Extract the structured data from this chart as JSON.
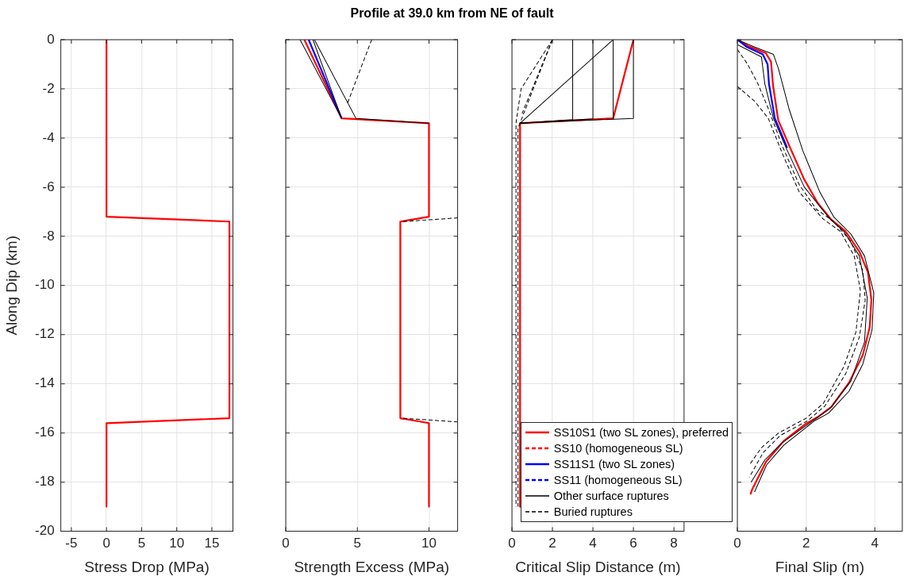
{
  "chart_data": [
    {
      "type": "line",
      "xlabel": "Stress Drop (MPa)",
      "ylabel": "Along Dip (km)",
      "xlim": [
        -6.5,
        18
      ],
      "xticks": [
        -5,
        0,
        5,
        10,
        15
      ],
      "ylim": [
        -20,
        0
      ],
      "yticks": [
        -20,
        -18,
        -16,
        -14,
        -12,
        -10,
        -8,
        -6,
        -4,
        -2,
        0
      ],
      "grid": true,
      "legend": false,
      "marker": "none",
      "series": [
        {
          "color": "#ff0000",
          "line_style": "solid",
          "x": [
            0,
            0,
            17.5,
            17.5,
            0,
            0
          ],
          "values": [
            0,
            -7.2,
            -7.4,
            -15.4,
            -15.6,
            -19
          ]
        }
      ]
    },
    {
      "type": "line",
      "title": "Profile at 39.0 km from NE of fault",
      "xlabel": "Strength Excess (MPa)",
      "xlim": [
        0,
        12
      ],
      "xticks": [
        0,
        5,
        10
      ],
      "ylim": [
        -20,
        0
      ],
      "yticks": [
        -20,
        -18,
        -16,
        -14,
        -12,
        -10,
        -8,
        -6,
        -4,
        -2,
        0
      ],
      "tick_labels": "x",
      "grid": true,
      "legend": false,
      "marker": "none",
      "series": [
        {
          "color": "#ff0000",
          "line_style": "solid",
          "x": [
            1.3,
            3.9,
            10,
            10,
            8,
            8,
            10,
            10
          ],
          "values": [
            0,
            -3.2,
            -3.4,
            -7.2,
            -7.4,
            -15.4,
            -15.6,
            -19
          ]
        },
        {
          "color": "#0000ff",
          "line_style": "solid",
          "x": [
            1.6,
            3.9
          ],
          "values": [
            0,
            -3.2
          ]
        },
        {
          "color": "#000000",
          "line_style": "solid",
          "x": [
            1.0,
            3.9
          ],
          "values": [
            0,
            -3.2
          ]
        },
        {
          "color": "#000000",
          "line_style": "solid",
          "x": [
            1.9,
            3.9
          ],
          "values": [
            0,
            -3.2
          ]
        },
        {
          "color": "#000000",
          "line_style": "solid",
          "x": [
            2.0,
            4.9,
            10
          ],
          "values": [
            0,
            -3.2,
            -3.4
          ]
        },
        {
          "color": "#000000",
          "line_style": "dashed",
          "x": [
            6,
            4.3
          ],
          "values": [
            0,
            -2.6
          ]
        },
        {
          "color": "#000000",
          "line_style": "dashed",
          "x": [
            8.2,
            12
          ],
          "values": [
            -7.4,
            -7.25
          ]
        },
        {
          "color": "#000000",
          "line_style": "dashed",
          "x": [
            8.2,
            12
          ],
          "values": [
            -15.4,
            -15.55
          ]
        }
      ]
    },
    {
      "type": "line",
      "xlabel": "Critical Slip Distance (m)",
      "xlim": [
        0,
        8.5
      ],
      "xticks": [
        0,
        2,
        4,
        6,
        8
      ],
      "ylim": [
        -20,
        0
      ],
      "yticks": [
        -20,
        -18,
        -16,
        -14,
        -12,
        -10,
        -8,
        -6,
        -4,
        -2,
        0
      ],
      "tick_labels": "x",
      "grid": true,
      "legend": "bottom",
      "marker": "none",
      "series": [
        {
          "name": "SS10S1 (two SL zones), preferred",
          "color": "#ff0000",
          "line_style": "solid",
          "x": [
            6,
            5,
            0.4,
            0.4
          ],
          "values": [
            0,
            -3.2,
            -3.4,
            -19
          ]
        },
        {
          "name": "SS10 (homogeneous SL)",
          "color": "#ff0000",
          "line_style": "dashed"
        },
        {
          "name": "SS11S1 (two SL zones)",
          "color": "#0000ff",
          "line_style": "solid"
        },
        {
          "name": "SS11 (homogeneous SL)",
          "color": "#0000ff",
          "line_style": "dashed"
        },
        {
          "name": "Other surface ruptures",
          "color": "#000000",
          "line_style": "solid",
          "x": [
            3,
            3,
            0.4
          ],
          "values": [
            0,
            -3.25,
            -3.4
          ]
        },
        {
          "color": "#000000",
          "line_style": "solid",
          "x": [
            4,
            4,
            0.4
          ],
          "values": [
            0,
            -3.22,
            -3.4
          ]
        },
        {
          "color": "#000000",
          "line_style": "solid",
          "x": [
            5,
            5
          ],
          "values": [
            0,
            -3.2
          ]
        },
        {
          "color": "#000000",
          "line_style": "solid",
          "x": [
            6,
            6,
            0.4
          ],
          "values": [
            0,
            -3.2,
            -3.4
          ]
        },
        {
          "color": "#000000",
          "line_style": "solid",
          "x": [
            5,
            0.4
          ],
          "values": [
            0,
            -3.4
          ]
        },
        {
          "name": "Buried ruptures",
          "color": "#000000",
          "line_style": "dashed",
          "x": [
            2,
            0.45,
            0.2,
            0.2
          ],
          "values": [
            0,
            -2,
            -3.4,
            -19
          ]
        },
        {
          "color": "#000000",
          "line_style": "dashed",
          "x": [
            2,
            0.3,
            0.3
          ],
          "values": [
            0,
            -3.6,
            -19
          ]
        },
        {
          "color": "#000000",
          "line_style": "dashed",
          "x": [
            2,
            0.5
          ],
          "values": [
            0,
            -3
          ]
        }
      ]
    },
    {
      "type": "line",
      "xlabel": "Final Slip (m)",
      "xlim": [
        0,
        4.8
      ],
      "xticks": [
        0,
        2,
        4
      ],
      "ylim": [
        -20,
        0
      ],
      "yticks": [
        -20,
        -18,
        -16,
        -14,
        -12,
        -10,
        -8,
        -6,
        -4,
        -2,
        0
      ],
      "tick_labels": "x",
      "grid": true,
      "legend": false,
      "marker": "none",
      "series": [
        {
          "color": "#ff0000",
          "line_style": "solid",
          "x": [
            0,
            0.33,
            0.83,
            0.98,
            1.04,
            1.19,
            1.54,
            1.94,
            2.34,
            2.74,
            3.14,
            3.55,
            3.8,
            3.9,
            3.85,
            3.65,
            3.25,
            2.74,
            2.34,
            1.99,
            1.34,
            0.83,
            0.43,
            0.38
          ],
          "values": [
            0,
            -0.27,
            -0.55,
            -0.9,
            -1.88,
            -3.28,
            -4.41,
            -5.67,
            -6.65,
            -7.33,
            -7.78,
            -8.62,
            -9.46,
            -10.58,
            -11.7,
            -12.83,
            -13.95,
            -14.93,
            -15.35,
            -15.63,
            -16.34,
            -17.18,
            -18.3,
            -18.5
          ]
        },
        {
          "color": "#0000ff",
          "line_style": "solid",
          "x": [
            0,
            0.28,
            0.74,
            0.88,
            0.92,
            1.09,
            1.45
          ],
          "values": [
            0,
            -0.3,
            -0.6,
            -1.0,
            -1.8,
            -3.2,
            -4.4
          ]
        },
        {
          "color": "#000000",
          "line_style": "solid",
          "x": [
            0,
            0.5,
            1.05,
            1.2,
            1.5,
            1.9,
            2.4,
            2.8,
            3.3,
            3.7,
            3.97,
            3.92,
            3.65,
            3.25,
            2.65,
            2.25,
            1.35,
            0.85,
            0.5
          ],
          "values": [
            0,
            -0.3,
            -0.6,
            -1.2,
            -2.8,
            -4.5,
            -6.2,
            -7.2,
            -7.9,
            -8.8,
            -10.3,
            -11.8,
            -13.2,
            -14.3,
            -15.2,
            -15.5,
            -16.5,
            -17.3,
            -18.4
          ]
        },
        {
          "color": "#000000",
          "line_style": "solid",
          "x": [
            0,
            0.7,
            0.8,
            1.05,
            1.45,
            1.95,
            2.7,
            3.1,
            3.55,
            3.78,
            3.7,
            3.3,
            2.7,
            2.2,
            1.3,
            0.8,
            0.4
          ],
          "values": [
            -0.2,
            -0.7,
            -1.8,
            -3.2,
            -4.5,
            -6.0,
            -7.3,
            -7.8,
            -8.8,
            -10.5,
            -12.3,
            -13.9,
            -15.0,
            -15.5,
            -16.4,
            -17.1,
            -18.0
          ]
        },
        {
          "color": "#000000",
          "line_style": "dashed",
          "x": [
            0,
            0.3,
            0.6,
            0.9,
            1.3,
            1.8,
            2.3,
            2.8,
            3.3,
            3.65,
            3.72,
            3.55,
            3.15,
            2.55,
            2.05,
            1.25,
            0.75,
            0.35
          ],
          "values": [
            -0.4,
            -1.0,
            -1.8,
            -2.8,
            -4.3,
            -5.9,
            -6.9,
            -7.4,
            -8.2,
            -9.4,
            -10.6,
            -12.1,
            -13.6,
            -14.9,
            -15.5,
            -16.1,
            -16.8,
            -17.8
          ]
        },
        {
          "color": "#000000",
          "line_style": "dashed",
          "x": [
            0,
            0.5,
            0.9,
            1.3,
            1.8,
            2.5,
            3.0,
            3.4,
            3.58,
            3.45,
            3.1,
            2.5,
            2.0,
            1.2,
            0.7,
            0.35
          ],
          "values": [
            -1.9,
            -2.5,
            -3.2,
            -4.6,
            -6.2,
            -7.3,
            -7.8,
            -8.8,
            -10.2,
            -11.9,
            -13.3,
            -14.8,
            -15.4,
            -16.0,
            -16.6,
            -17.3
          ]
        }
      ]
    }
  ]
}
